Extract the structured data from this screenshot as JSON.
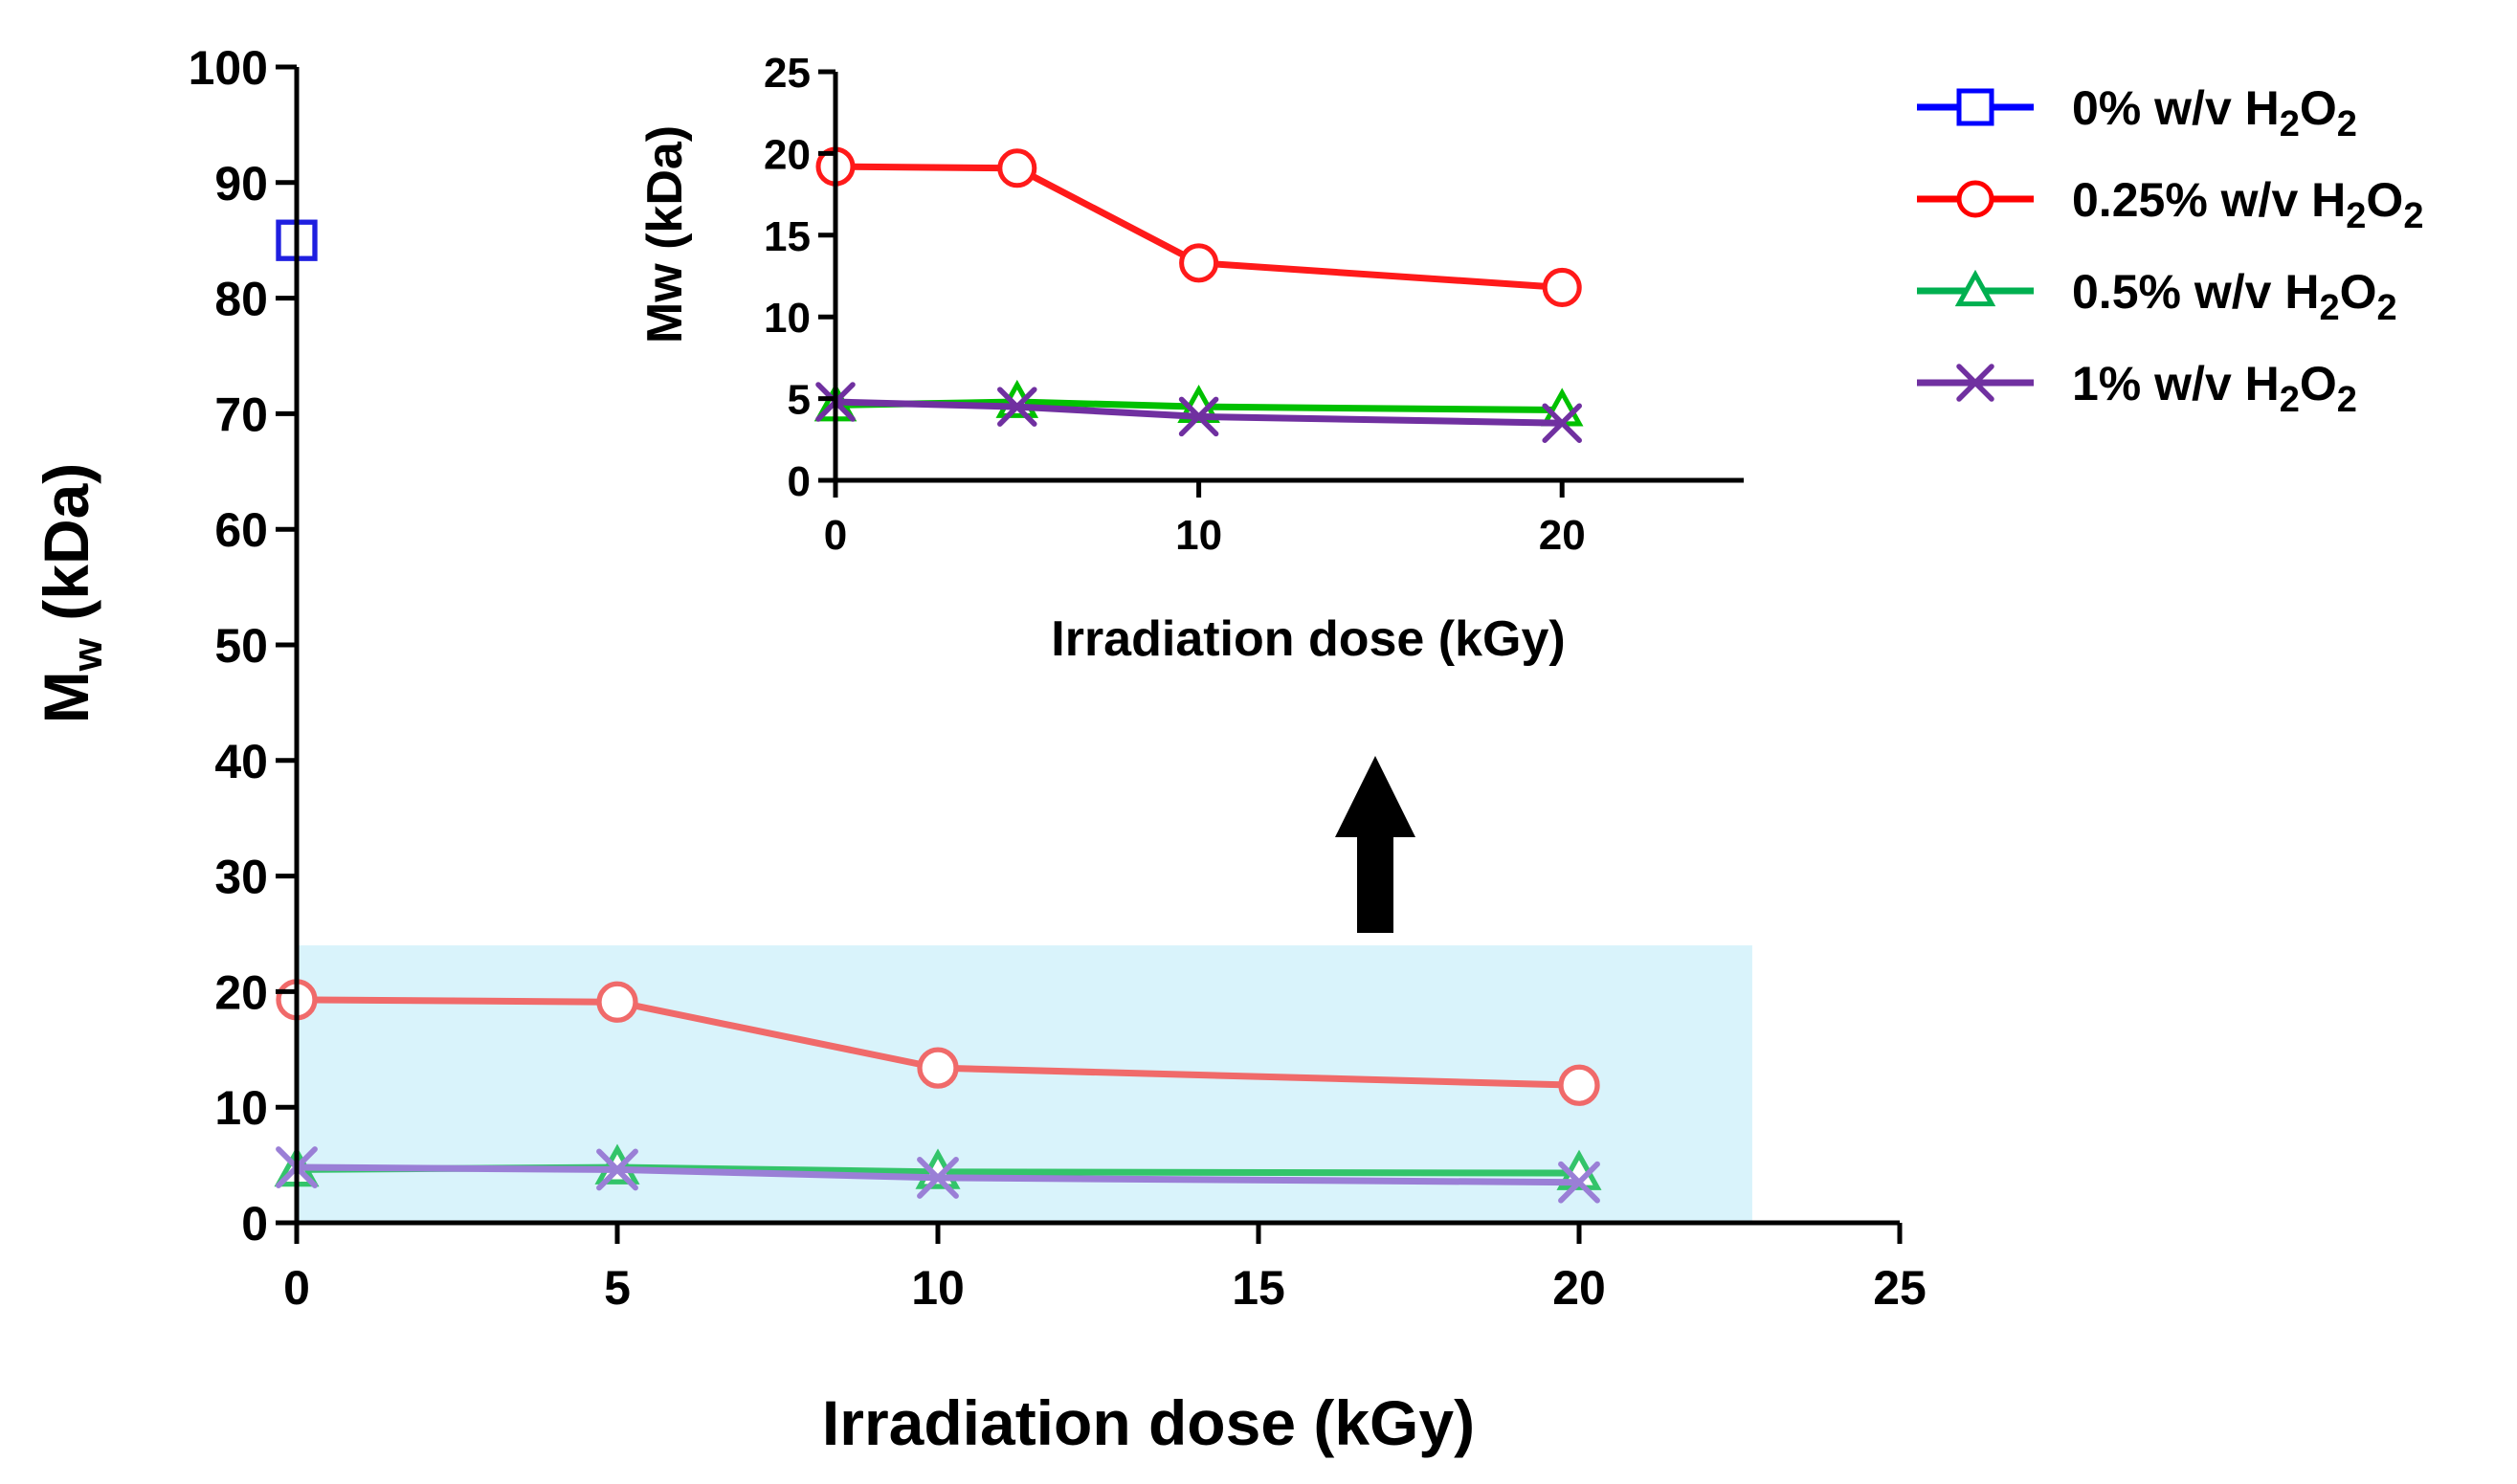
{
  "chart_data": [
    {
      "id": "main",
      "type": "line",
      "title": "",
      "xlabel": "Irradiation dose (kGy)",
      "ylabel_main": "M",
      "ylabel_sub": "w",
      "ylabel_tail": " (kDa)",
      "xlim": [
        0,
        25
      ],
      "ylim": [
        0,
        100
      ],
      "xticks": [
        0,
        5,
        10,
        15,
        20,
        25
      ],
      "yticks": [
        0,
        10,
        20,
        30,
        40,
        50,
        60,
        70,
        80,
        90,
        100
      ],
      "xtick_labels": [
        "0",
        "5",
        "10",
        "15",
        "20",
        "25"
      ],
      "ytick_labels": [
        "0",
        "10",
        "20",
        "30",
        "40",
        "50",
        "60",
        "70",
        "80",
        "90",
        "100"
      ],
      "grid": false,
      "highlight_region": {
        "x": [
          0,
          22.7
        ],
        "y": [
          0,
          24.0
        ],
        "color": "#d9f3fb"
      },
      "series": [
        {
          "name": "0% w/v H2O2",
          "marker": "square",
          "color": "#1f1fe0",
          "x": [
            0
          ],
          "y": [
            85.0
          ]
        },
        {
          "name": "0.25% w/v H2O2",
          "marker": "circle",
          "color": "#f06a6a",
          "x": [
            0,
            5,
            10,
            20
          ],
          "y": [
            19.3,
            19.1,
            13.4,
            11.9
          ]
        },
        {
          "name": "0.5% w/v H2O2",
          "marker": "triangle",
          "color": "#33c46a",
          "x": [
            0,
            5,
            10,
            20
          ],
          "y": [
            4.6,
            4.8,
            4.4,
            4.3
          ]
        },
        {
          "name": "1% w/v H2O2",
          "marker": "x",
          "color": "#9a7fd6",
          "x": [
            0,
            5,
            10,
            20
          ],
          "y": [
            4.8,
            4.6,
            3.9,
            3.5
          ]
        }
      ]
    },
    {
      "id": "inset",
      "type": "line",
      "title": "",
      "xlabel": "Irradiation dose (kGy)",
      "ylabel": "Mw (kDa)",
      "xlim": [
        0,
        25
      ],
      "ylim": [
        0,
        25
      ],
      "xticks": [
        0,
        10,
        20
      ],
      "yticks": [
        0,
        5,
        10,
        15,
        20,
        25
      ],
      "xtick_labels": [
        "0",
        "10",
        "20"
      ],
      "ytick_labels": [
        "0",
        "5",
        "10",
        "15",
        "20",
        "25"
      ],
      "grid": false,
      "series": [
        {
          "name": "0.25% w/v H2O2",
          "marker": "circle",
          "color": "#ff1a1a",
          "x": [
            0,
            5,
            10,
            20
          ],
          "y": [
            19.2,
            19.1,
            13.3,
            11.8
          ]
        },
        {
          "name": "0.5% w/v H2O2",
          "marker": "triangle",
          "color": "#00c000",
          "x": [
            0,
            5,
            10,
            20
          ],
          "y": [
            4.6,
            4.8,
            4.5,
            4.3
          ]
        },
        {
          "name": "1% w/v H2O2",
          "marker": "x",
          "color": "#7030a0",
          "x": [
            0,
            5,
            10,
            20
          ],
          "y": [
            4.8,
            4.5,
            3.9,
            3.5
          ]
        }
      ]
    }
  ],
  "legend": {
    "placement": "top-right",
    "entries": [
      {
        "pre": "0% w/v H",
        "sub1": "2",
        "mid": "O",
        "sub2": "2",
        "marker": "square",
        "color": "#0000ff"
      },
      {
        "pre": "0.25% w/v H",
        "sub1": "2",
        "mid": "O",
        "sub2": "2",
        "marker": "circle",
        "color": "#ff0000"
      },
      {
        "pre": "0.5% w/v H",
        "sub1": "2",
        "mid": "O",
        "sub2": "2",
        "marker": "triangle",
        "color": "#00b050"
      },
      {
        "pre": "1% w/v H",
        "sub1": "2",
        "mid": "O",
        "sub2": "2",
        "marker": "x",
        "color": "#7030a0"
      }
    ]
  },
  "annotation": {
    "arrow": "up",
    "color": "#000000",
    "meaning": "zoomed region shown in inset"
  }
}
